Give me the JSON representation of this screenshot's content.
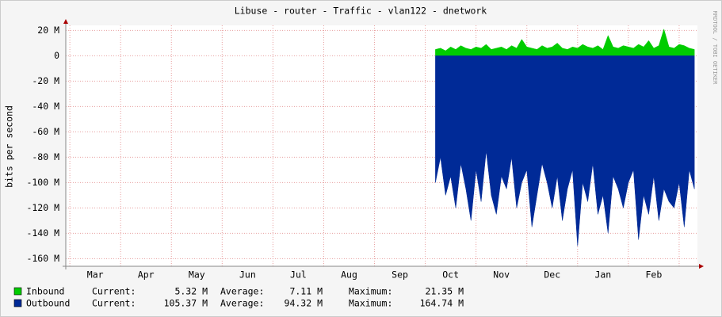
{
  "chart_data": {
    "type": "area",
    "title": "Libuse - router - Traffic - vlan122 - dnetwork",
    "y_label": "bits per second",
    "watermark": "RRDTOOL / TOBI OETIKER",
    "xlim": [
      -0.08,
      12.36
    ],
    "xticks": [
      {
        "value": 0.5,
        "label": "Mar"
      },
      {
        "value": 1.5,
        "label": "Apr"
      },
      {
        "value": 2.5,
        "label": "May"
      },
      {
        "value": 3.5,
        "label": "Jun"
      },
      {
        "value": 4.5,
        "label": "Jul"
      },
      {
        "value": 5.5,
        "label": "Aug"
      },
      {
        "value": 6.5,
        "label": "Sep"
      },
      {
        "value": 7.5,
        "label": "Oct"
      },
      {
        "value": 8.5,
        "label": "Nov"
      },
      {
        "value": 9.5,
        "label": "Dec"
      },
      {
        "value": 10.5,
        "label": "Jan"
      },
      {
        "value": 11.5,
        "label": "Feb"
      }
    ],
    "xgrid": [
      0,
      1,
      2,
      3,
      4,
      5,
      6,
      7,
      8,
      9,
      10,
      11,
      12
    ],
    "ylim": [
      -166,
      24
    ],
    "yticks": [
      {
        "value": 20,
        "label": "20 M"
      },
      0,
      {
        "value": -20,
        "label": "-20 M"
      },
      {
        "value": -40,
        "label": "-40 M"
      },
      {
        "value": -60,
        "label": "-60 M"
      },
      {
        "value": -80,
        "label": "-80 M"
      },
      {
        "value": -100,
        "label": "-100 M"
      },
      {
        "value": -120,
        "label": "-120 M"
      },
      {
        "value": -140,
        "label": "-140 M"
      },
      {
        "value": -160,
        "label": "-160 M"
      }
    ],
    "grid": true,
    "x": [
      7.2,
      7.3,
      7.4,
      7.5,
      7.6,
      7.7,
      7.8,
      7.9,
      8.0,
      8.1,
      8.2,
      8.3,
      8.4,
      8.5,
      8.6,
      8.7,
      8.8,
      8.9,
      9.0,
      9.1,
      9.2,
      9.3,
      9.4,
      9.5,
      9.6,
      9.7,
      9.8,
      9.9,
      10.0,
      10.1,
      10.2,
      10.3,
      10.4,
      10.5,
      10.6,
      10.7,
      10.8,
      10.9,
      11.0,
      11.1,
      11.2,
      11.3,
      11.4,
      11.5,
      11.6,
      11.7,
      11.8,
      11.9,
      12.0,
      12.1,
      12.2,
      12.3
    ],
    "series": [
      {
        "name": "Inbound",
        "color": "#00cc00",
        "values": [
          5,
          6,
          4,
          7,
          5,
          8,
          6,
          5,
          7,
          6,
          9,
          5,
          6,
          7,
          5,
          8,
          6,
          13,
          7,
          6,
          5,
          8,
          6,
          7,
          10,
          6,
          5,
          7,
          6,
          9,
          7,
          6,
          8,
          5,
          16,
          7,
          6,
          8,
          7,
          6,
          9,
          7,
          12,
          6,
          8,
          21,
          7,
          6,
          9,
          8,
          6,
          5
        ],
        "stats": [
          {
            "label": "Current:",
            "value": "5.32 M"
          },
          {
            "label": "Average:",
            "value": "7.11 M"
          },
          {
            "label": "Maximum:",
            "value": "21.35 M"
          }
        ]
      },
      {
        "name": "Outbound",
        "color": "#002a97",
        "values": [
          -100,
          -80,
          -110,
          -95,
          -120,
          -85,
          -105,
          -130,
          -90,
          -115,
          -75,
          -110,
          -125,
          -95,
          -105,
          -80,
          -120,
          -100,
          -90,
          -135,
          -110,
          -85,
          -100,
          -120,
          -95,
          -130,
          -105,
          -90,
          -150,
          -100,
          -115,
          -85,
          -125,
          -110,
          -140,
          -95,
          -105,
          -120,
          -100,
          -90,
          -145,
          -110,
          -125,
          -95,
          -130,
          -105,
          -115,
          -120,
          -100,
          -135,
          -90,
          -105
        ],
        "stats": [
          {
            "label": "Current:",
            "value": "105.37 M"
          },
          {
            "label": "Average:",
            "value": "94.32 M"
          },
          {
            "label": "Maximum:",
            "value": "164.74 M"
          }
        ]
      }
    ]
  }
}
